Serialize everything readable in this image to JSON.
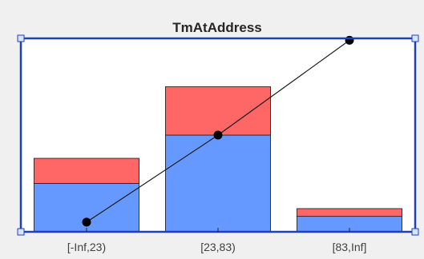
{
  "chart_data": {
    "type": "bar",
    "title": "TmAtAddress",
    "categories": [
      "[-Inf,23)",
      "[23,83)",
      "[83,Inf]"
    ],
    "series": [
      {
        "color": "#6699ff",
        "values": [
          0.25,
          0.5,
          0.08
        ]
      },
      {
        "color": "#ff6666",
        "values": [
          0.13,
          0.25,
          0.04
        ]
      }
    ],
    "stacked": true,
    "line": {
      "color": "#1a1a1a",
      "values": [
        0.05,
        0.5,
        0.99
      ]
    },
    "ylim": [
      0,
      1
    ],
    "grid": false,
    "legend": "none",
    "selected_axes_color": "#1f3fbf"
  }
}
